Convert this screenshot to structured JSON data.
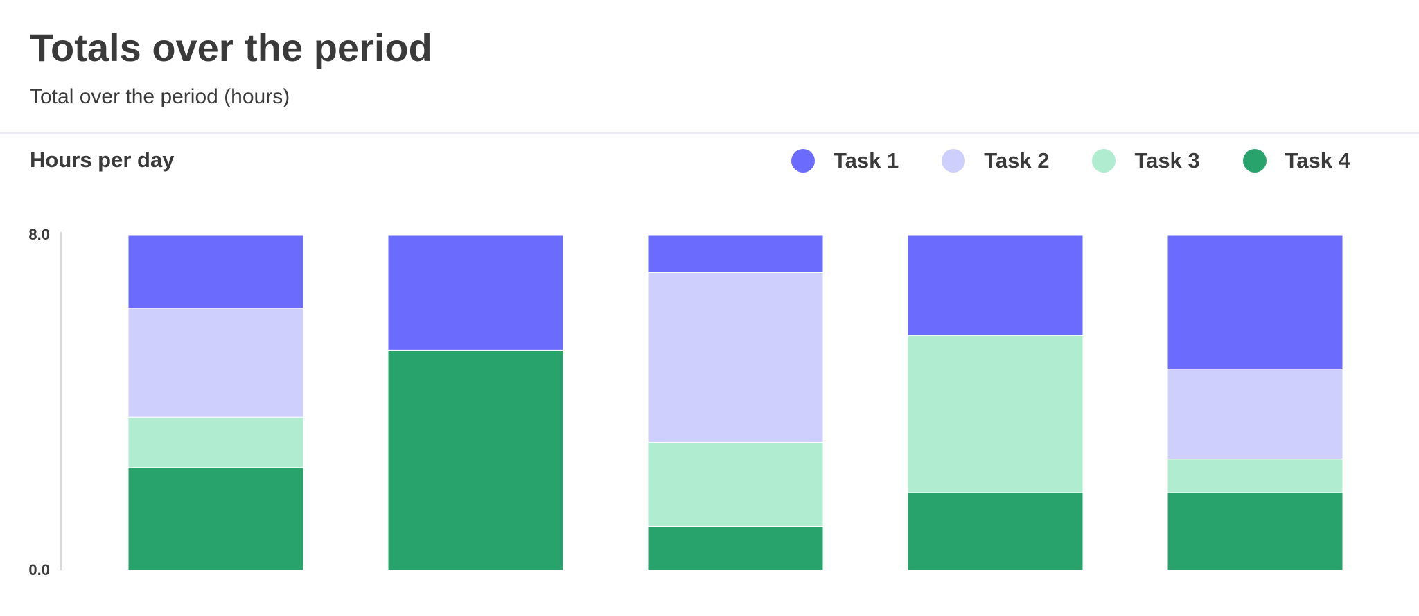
{
  "header": {
    "title": "Totals over the period",
    "subtitle": "Total over the period (hours)"
  },
  "chart_heading": "Hours per day",
  "colors": {
    "task1": "#6b6bfd",
    "task2": "#cfcffd",
    "task3": "#b0ecd0",
    "task4": "#29a36c",
    "axis": "#d9d9d9",
    "text": "#3a3a3a"
  },
  "chart_data": {
    "type": "bar",
    "stacked": true,
    "title": "Hours per day",
    "xlabel": "",
    "ylabel": "",
    "ylim": [
      0,
      8
    ],
    "yticks": [
      "0.0",
      "8.0"
    ],
    "categories": [
      "",
      "",
      "",
      "",
      ""
    ],
    "grid": false,
    "legend_position": "top-right",
    "series": [
      {
        "name": "Task 4",
        "color": "#29a36c",
        "values": [
          2.45,
          5.25,
          1.05,
          1.85,
          1.85
        ]
      },
      {
        "name": "Task 3",
        "color": "#b0ecd0",
        "values": [
          1.2,
          0,
          2.0,
          3.75,
          0.8
        ]
      },
      {
        "name": "Task 2",
        "color": "#cfcffd",
        "values": [
          2.6,
          0,
          4.05,
          0,
          2.15
        ]
      },
      {
        "name": "Task 1",
        "color": "#6b6bfd",
        "values": [
          1.75,
          2.75,
          0.9,
          2.4,
          3.2
        ]
      }
    ],
    "legend_order": [
      "Task 1",
      "Task 2",
      "Task 3",
      "Task 4"
    ]
  }
}
